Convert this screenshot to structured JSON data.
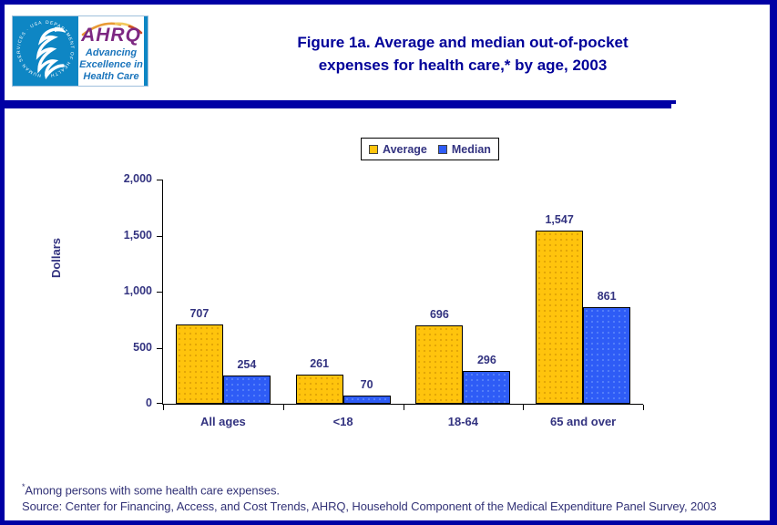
{
  "header": {
    "title_line1": "Figure 1a. Average and median out-of-pocket",
    "title_line2": "expenses for health care,* by age, 2003"
  },
  "logo": {
    "seal_text": "DEPARTMENT OF HEALTH & HUMAN SERVICES · USA",
    "acronym": "AHRQ",
    "tagline_line1": "Advancing",
    "tagline_line2": "Excellence in",
    "tagline_line3": "Health Care"
  },
  "chart_data": {
    "type": "bar",
    "title": "Figure 1a. Average and median out-of-pocket expenses for health care,* by age, 2003",
    "categories": [
      "All ages",
      "<18",
      "18-64",
      "65 and over"
    ],
    "series": [
      {
        "name": "Average",
        "color": "#FFC40D",
        "values": [
          707,
          261,
          696,
          1547
        ],
        "labels": [
          "707",
          "261",
          "696",
          "1,547"
        ]
      },
      {
        "name": "Median",
        "color": "#2E5CF6",
        "values": [
          254,
          70,
          296,
          861
        ],
        "labels": [
          "254",
          "70",
          "296",
          "861"
        ]
      }
    ],
    "xlabel": "",
    "ylabel": "Dollars",
    "ylim": [
      0,
      2000
    ],
    "yticks": [
      {
        "value": 0,
        "label": "0"
      },
      {
        "value": 500,
        "label": "500"
      },
      {
        "value": 1000,
        "label": "1,000"
      },
      {
        "value": 1500,
        "label": "1,500"
      },
      {
        "value": 2000,
        "label": "2,000"
      }
    ],
    "grid": false,
    "legend_position": "top-center"
  },
  "footnotes": {
    "note_mark": "*",
    "note": "Among persons with some health care expenses.",
    "source": "Source: Center for Financing, Access, and Cost Trends, AHRQ, Household Component of the Medical Expenditure Panel Survey, 2003"
  },
  "colors": {
    "page_border_navy": "#0000A4",
    "title_navy": "#000099",
    "label_navy": "#333380",
    "bar_average_gold": "#FFC40D",
    "bar_median_blue": "#2E5CF6",
    "hhs_cyan": "#0E86C4",
    "ahrq_purple": "#7D2882",
    "ahrq_tagline_blue": "#1B75BC"
  }
}
